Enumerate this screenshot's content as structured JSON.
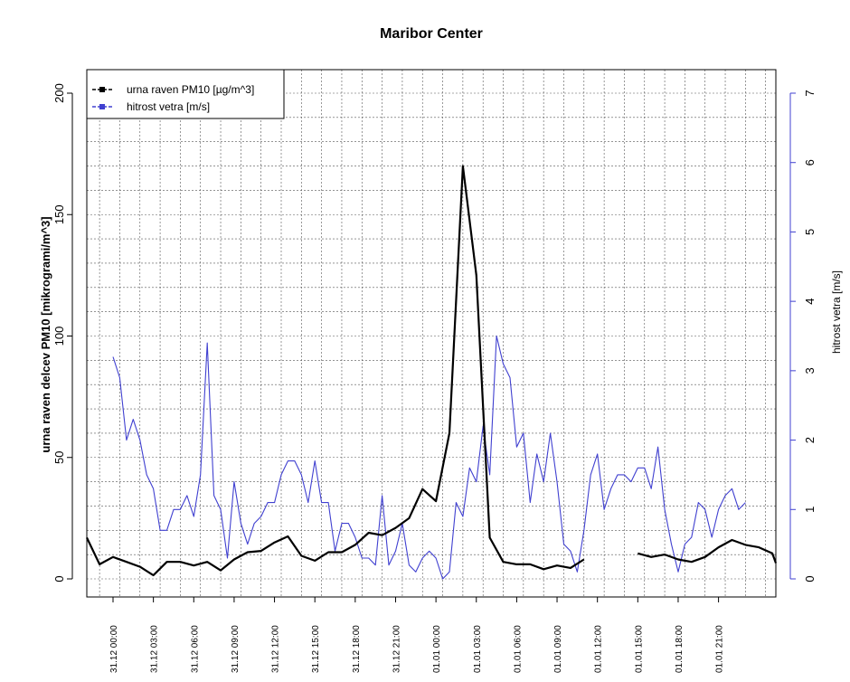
{
  "chart_data": {
    "type": "line",
    "title": "Maribor Center",
    "ylabel": "urna raven delcev PM10 [mikrogrami/m^3]",
    "ylabel_right": "hitrost vetra [m/s]",
    "ylim": [
      0,
      200
    ],
    "ylim_right": [
      0,
      7
    ],
    "yticks": [
      "0",
      "50",
      "100",
      "150",
      "200"
    ],
    "yticks_right": [
      "0",
      "1",
      "2",
      "3",
      "4",
      "5",
      "6",
      "7"
    ],
    "x_labels": [
      "31.12 00:00",
      "31.12 03:00",
      "31.12 06:00",
      "31.12 09:00",
      "31.12 12:00",
      "31.12 15:00",
      "31.12 18:00",
      "31.12 21:00",
      "01.01 00:00",
      "01.01 03:00",
      "01.01 06:00",
      "01.01 09:00",
      "01.01 12:00",
      "01.01 15:00",
      "01.01 18:00",
      "01.01 21:00"
    ],
    "grid": true,
    "legend_position": "top-left",
    "colors": {
      "pm10": "#000000",
      "wind": "#4040d0"
    },
    "series": [
      {
        "name": "urna raven PM10 [µg/m^3]",
        "axis": "left",
        "points": [
          [
            -2,
            17
          ],
          [
            -1,
            6
          ],
          [
            0,
            9
          ],
          [
            1,
            7
          ],
          [
            2,
            5
          ],
          [
            3,
            1.5
          ],
          [
            4,
            7
          ],
          [
            5,
            7
          ],
          [
            6,
            5.5
          ],
          [
            7,
            7
          ],
          [
            8,
            3.5
          ],
          [
            9,
            8
          ],
          [
            10,
            11
          ],
          [
            11,
            11.5
          ],
          [
            12,
            15
          ],
          [
            13,
            17.5
          ],
          [
            14,
            9.5
          ],
          [
            15,
            7.5
          ],
          [
            16,
            11
          ],
          [
            17,
            11
          ],
          [
            18,
            14
          ],
          [
            19,
            19
          ],
          [
            20,
            18
          ],
          [
            21,
            21
          ],
          [
            22,
            25
          ],
          [
            23,
            37
          ],
          [
            24,
            32
          ],
          [
            25,
            60
          ],
          [
            26,
            170
          ],
          [
            27,
            125
          ],
          [
            28,
            17
          ],
          [
            29,
            7
          ],
          [
            30,
            6
          ],
          [
            31,
            6
          ],
          [
            32,
            4
          ],
          [
            33,
            5.5
          ],
          [
            34,
            4.5
          ],
          [
            35,
            8
          ],
          null,
          [
            39,
            10.5
          ],
          [
            40,
            9
          ],
          [
            41,
            10
          ],
          [
            42,
            8
          ],
          [
            43,
            7
          ],
          [
            44,
            9
          ],
          [
            45,
            13
          ],
          [
            46,
            16
          ],
          [
            47,
            14
          ],
          [
            48,
            13
          ],
          [
            49,
            10.5
          ],
          [
            50,
            6.5
          ]
        ]
      },
      {
        "name": "hitrost vetra [m/s]",
        "axis": "right",
        "points": [
          [
            0,
            3.2
          ],
          [
            0.5,
            2.9
          ],
          [
            1,
            2.0
          ],
          [
            1.5,
            2.3
          ],
          [
            2,
            2.0
          ],
          [
            2.5,
            1.5
          ],
          [
            3,
            1.3
          ],
          [
            3.5,
            0.7
          ],
          [
            4,
            0.7
          ],
          [
            4.5,
            1.0
          ],
          [
            5,
            1.0
          ],
          [
            5.5,
            1.2
          ],
          [
            6,
            0.9
          ],
          [
            6.5,
            1.5
          ],
          [
            7,
            3.4
          ],
          [
            7.5,
            1.2
          ],
          [
            8,
            1.0
          ],
          [
            8.5,
            0.3
          ],
          [
            9,
            1.4
          ],
          [
            9.5,
            0.8
          ],
          [
            10,
            0.5
          ],
          [
            10.5,
            0.8
          ],
          [
            11,
            0.9
          ],
          [
            11.5,
            1.1
          ],
          [
            12,
            1.1
          ],
          [
            12.5,
            1.5
          ],
          [
            13,
            1.7
          ],
          [
            13.5,
            1.7
          ],
          [
            14,
            1.5
          ],
          [
            14.5,
            1.1
          ],
          [
            15,
            1.7
          ],
          [
            15.5,
            1.1
          ],
          [
            16,
            1.1
          ],
          [
            16.5,
            0.4
          ],
          [
            17,
            0.8
          ],
          [
            17.5,
            0.8
          ],
          [
            18,
            0.6
          ],
          [
            18.5,
            0.3
          ],
          [
            19,
            0.3
          ],
          [
            19.5,
            0.2
          ],
          [
            20,
            1.2
          ],
          [
            20.5,
            0.2
          ],
          [
            21,
            0.4
          ],
          [
            21.5,
            0.8
          ],
          [
            22,
            0.2
          ],
          [
            22.5,
            0.1
          ],
          [
            23,
            0.3
          ],
          [
            23.5,
            0.4
          ],
          [
            24,
            0.3
          ],
          [
            24.5,
            0.0
          ],
          [
            25,
            0.1
          ],
          [
            25.5,
            1.1
          ],
          [
            26,
            0.9
          ],
          [
            26.5,
            1.6
          ],
          [
            27,
            1.4
          ],
          [
            27.5,
            2.2
          ],
          [
            28,
            1.5
          ],
          [
            28.5,
            3.5
          ],
          [
            29,
            3.1
          ],
          [
            29.5,
            2.9
          ],
          [
            30,
            1.9
          ],
          [
            30.5,
            2.1
          ],
          [
            31,
            1.1
          ],
          [
            31.5,
            1.8
          ],
          [
            32,
            1.4
          ],
          [
            32.5,
            2.1
          ],
          [
            33,
            1.4
          ],
          [
            33.5,
            0.5
          ],
          [
            34,
            0.4
          ],
          [
            34.5,
            0.1
          ],
          [
            35,
            0.7
          ],
          [
            35.5,
            1.5
          ],
          [
            36,
            1.8
          ],
          [
            36.5,
            1.0
          ],
          [
            37,
            1.3
          ],
          [
            37.5,
            1.5
          ],
          [
            38,
            1.5
          ],
          [
            38.5,
            1.4
          ],
          [
            39,
            1.6
          ],
          [
            39.5,
            1.6
          ],
          [
            40,
            1.3
          ],
          [
            40.5,
            1.9
          ],
          [
            41,
            1.0
          ],
          [
            41.5,
            0.5
          ],
          [
            42,
            0.1
          ],
          [
            42.5,
            0.5
          ],
          [
            43,
            0.6
          ],
          [
            43.5,
            1.1
          ],
          [
            44,
            1.0
          ],
          [
            44.5,
            0.6
          ],
          [
            45,
            1.0
          ],
          [
            45.5,
            1.2
          ],
          [
            46,
            1.3
          ],
          [
            46.5,
            1.0
          ],
          [
            47,
            1.1
          ]
        ]
      }
    ]
  }
}
